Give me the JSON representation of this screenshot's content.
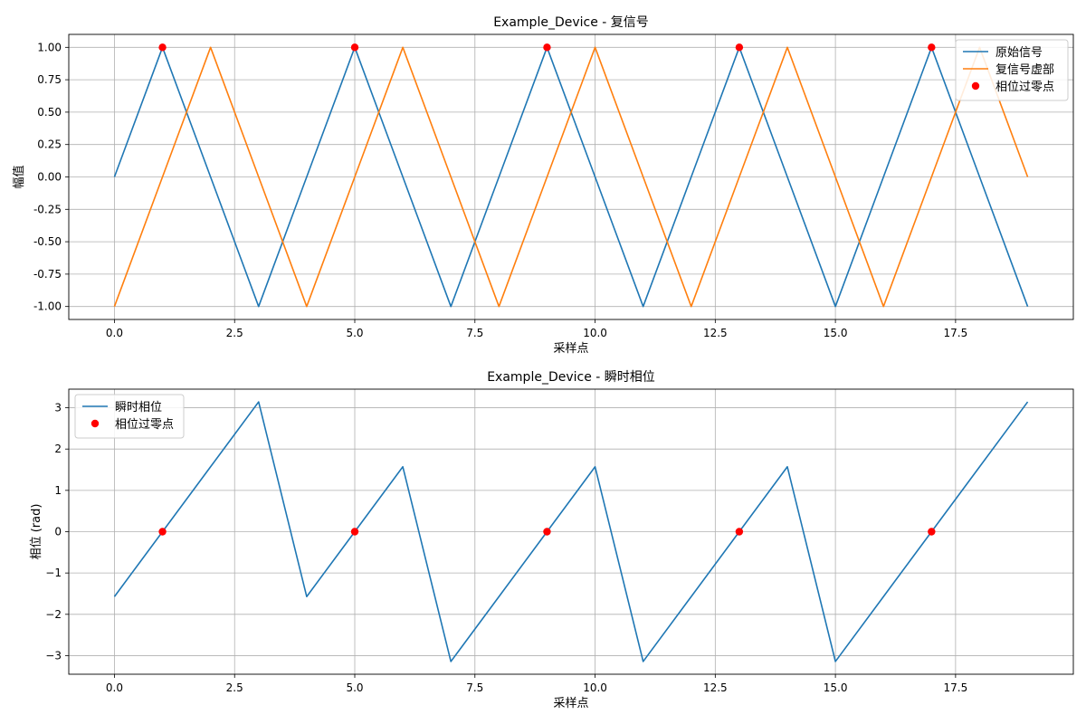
{
  "chart_data": [
    {
      "type": "line",
      "title": "Example_Device - 复信号",
      "xlabel": "采样点",
      "ylabel": "幅值",
      "xlim": [
        -0.95,
        19.95
      ],
      "ylim": [
        -1.1,
        1.1
      ],
      "xticks": [
        0,
        2.5,
        5,
        7.5,
        10,
        12.5,
        15,
        17.5
      ],
      "xtick_labels": [
        "0.0",
        "2.5",
        "5.0",
        "7.5",
        "10.0",
        "12.5",
        "15.0",
        "17.5"
      ],
      "yticks": [
        1,
        0.75,
        0.5,
        0.25,
        0,
        -0.25,
        -0.5,
        -0.75,
        -1
      ],
      "ytick_labels": [
        "1.00",
        "0.75",
        "0.50",
        "0.25",
        "0.00",
        "-0.25",
        "-0.50",
        "-0.75",
        "-1.00"
      ],
      "grid": true,
      "legend_position": "top-right",
      "x": [
        0,
        1,
        2,
        3,
        4,
        5,
        6,
        7,
        8,
        9,
        10,
        11,
        12,
        13,
        14,
        15,
        16,
        17,
        18,
        19
      ],
      "series": [
        {
          "name": "原始信号",
          "kind": "line",
          "color": "#1f77b4",
          "values": [
            0,
            1,
            0,
            -1,
            0,
            1,
            0,
            -1,
            0,
            1,
            0,
            -1,
            0,
            1,
            0,
            -1,
            0,
            1,
            0,
            -1
          ]
        },
        {
          "name": "复信号虚部",
          "kind": "line",
          "color": "#ff7f0e",
          "values": [
            -1,
            0,
            1,
            0,
            -1,
            0,
            1,
            0,
            -1,
            0,
            1,
            0,
            -1,
            0,
            1,
            0,
            -1,
            0,
            1,
            0
          ]
        },
        {
          "name": "相位过零点",
          "kind": "scatter",
          "color": "#ff0000",
          "x": [
            1,
            5,
            9,
            13,
            17
          ],
          "values": [
            1,
            1,
            1,
            1,
            1
          ]
        }
      ]
    },
    {
      "type": "line",
      "title": "Example_Device - 瞬时相位",
      "xlabel": "采样点",
      "ylabel": "相位 (rad)",
      "xlim": [
        -0.95,
        19.95
      ],
      "ylim": [
        -3.45,
        3.45
      ],
      "xticks": [
        0,
        2.5,
        5,
        7.5,
        10,
        12.5,
        15,
        17.5
      ],
      "xtick_labels": [
        "0.0",
        "2.5",
        "5.0",
        "7.5",
        "10.0",
        "12.5",
        "15.0",
        "17.5"
      ],
      "yticks": [
        3,
        2,
        1,
        0,
        -1,
        -2,
        -3
      ],
      "ytick_labels": [
        "3",
        "2",
        "1",
        "0",
        "−1",
        "−2",
        "−3"
      ],
      "grid": true,
      "legend_position": "top-left",
      "x": [
        0,
        1,
        2,
        3,
        4,
        5,
        6,
        7,
        8,
        9,
        10,
        11,
        12,
        13,
        14,
        15,
        16,
        17,
        18,
        19
      ],
      "series": [
        {
          "name": "瞬时相位",
          "kind": "line",
          "color": "#1f77b4",
          "values": [
            -1.571,
            0,
            1.571,
            3.142,
            -1.571,
            0,
            1.571,
            -3.142,
            -1.571,
            0,
            1.571,
            -3.142,
            -1.571,
            0,
            1.571,
            -3.142,
            -1.571,
            0,
            1.571,
            3.142
          ]
        },
        {
          "name": "相位过零点",
          "kind": "scatter",
          "color": "#ff0000",
          "x": [
            1,
            5,
            9,
            13,
            17
          ],
          "values": [
            0,
            0,
            0,
            0,
            0
          ]
        }
      ]
    }
  ]
}
